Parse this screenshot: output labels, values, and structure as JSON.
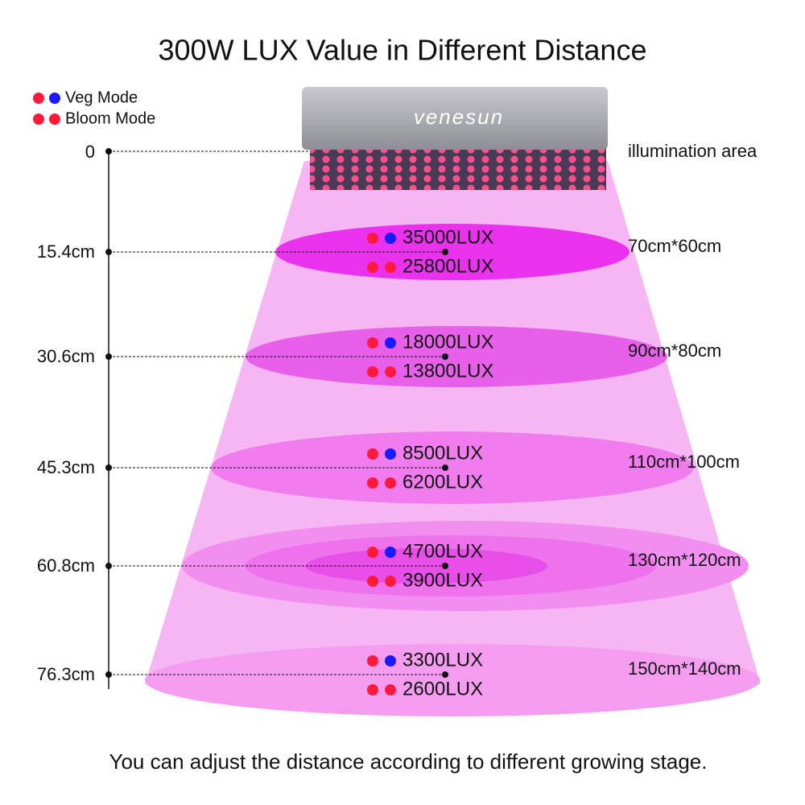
{
  "title": "300W LUX Value in Different Distance",
  "legend": [
    {
      "label": "Veg Mode"
    },
    {
      "label": "Bloom Mode"
    }
  ],
  "brand": "venesun",
  "origin": {
    "distance": "0",
    "area": "illumination area"
  },
  "levels": [
    {
      "distance": "15.4cm",
      "veg": "35000LUX",
      "bloom": "25800LUX",
      "area": "70cm*60cm"
    },
    {
      "distance": "30.6cm",
      "veg": "18000LUX",
      "bloom": "13800LUX",
      "area": "90cm*80cm"
    },
    {
      "distance": "45.3cm",
      "veg": "8500LUX",
      "bloom": "6200LUX",
      "area": "110cm*100cm"
    },
    {
      "distance": "60.8cm",
      "veg": "4700LUX",
      "bloom": "3900LUX",
      "area": "130cm*120cm"
    },
    {
      "distance": "76.3cm",
      "veg": "3300LUX",
      "bloom": "2600LUX",
      "area": "150cm*140cm"
    }
  ],
  "footer": "You can adjust the distance according to different growing stage."
}
